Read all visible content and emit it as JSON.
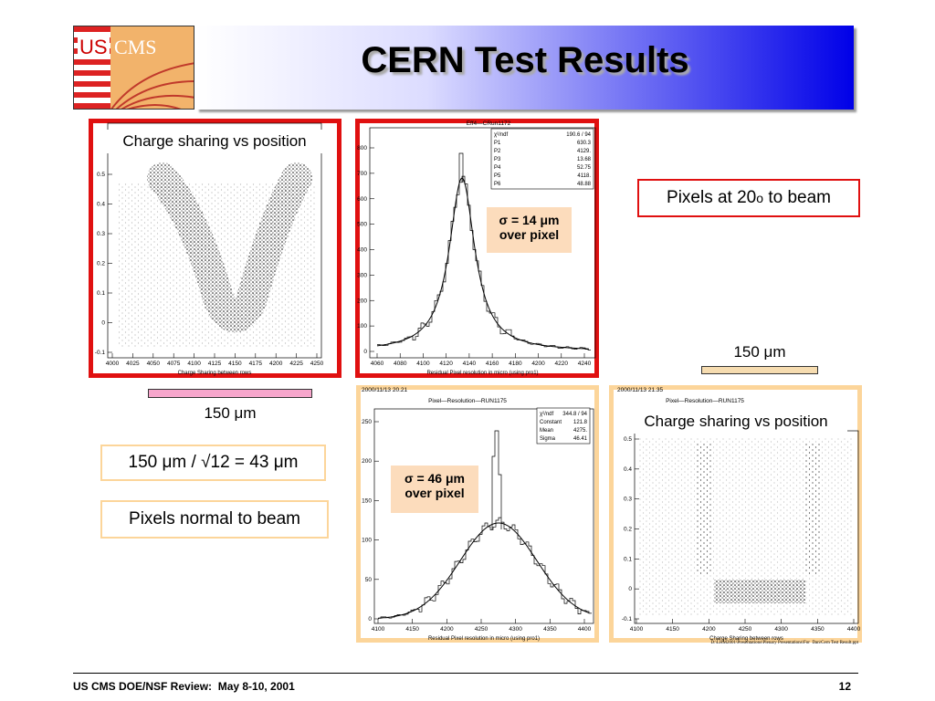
{
  "header": {
    "logo_us": "US",
    "logo_cms": "CMS",
    "title": "CERN Test Results"
  },
  "plots": [
    {
      "label": "Charge sharing vs position",
      "xlabel": "Charge Sharing between rows",
      "xticks": [
        4000,
        4025,
        4050,
        4075,
        4100,
        4125,
        4150,
        4175,
        4200,
        4225,
        4250
      ],
      "yticks": [
        -0.1,
        0,
        0.1,
        0.2,
        0.3,
        0.4,
        0.5
      ]
    },
    {
      "title": "Eff4—CRun1172",
      "xlabel": "Residual Pixel resolution in micro (using pro1)",
      "xticks": [
        4060,
        4080,
        4100,
        4120,
        4140,
        4160,
        4180,
        4200,
        4220,
        4240
      ],
      "yticks": [
        0,
        100,
        200,
        300,
        400,
        500,
        600,
        700,
        800
      ],
      "stats": [
        {
          "name": "χ²/ndf",
          "value": "190.6  /  94"
        },
        {
          "name": "P1",
          "value": "630.3"
        },
        {
          "name": "P2",
          "value": "4129."
        },
        {
          "name": "P3",
          "value": "13.68"
        },
        {
          "name": "P4",
          "value": "52.75"
        },
        {
          "name": "P5",
          "value": "4118."
        },
        {
          "name": "P6",
          "value": "48.88"
        }
      ]
    },
    {
      "date": "2000/11/13   20.21",
      "title": "Pixel—Resolution—RUN1175",
      "xlabel": "Residual Pixel resolution in micro (using pro1)",
      "xticks": [
        4100,
        4150,
        4200,
        4250,
        4300,
        4350,
        4400
      ],
      "yticks": [
        0,
        50,
        100,
        150,
        200,
        250
      ],
      "stats": [
        {
          "name": "χ²/ndf",
          "value": "344.8  /  94"
        },
        {
          "name": "Constant",
          "value": "121.8"
        },
        {
          "name": "Mean",
          "value": "4275."
        },
        {
          "name": "Sigma",
          "value": "46.41"
        }
      ]
    },
    {
      "date": "2000/11/13   21.35",
      "title": "Pixel—Resolution—RUN1175",
      "label": "Charge sharing vs position",
      "xlabel": "Charge Sharing between rows",
      "xticks": [
        4100,
        4150,
        4200,
        4250,
        4300,
        4350,
        4400
      ],
      "yticks": [
        -0.1,
        0,
        0.1,
        0.2,
        0.3,
        0.4,
        0.5
      ]
    }
  ],
  "annotations": {
    "sigma_top": [
      "σ = 14 μm",
      "over pixel"
    ],
    "sigma_bottom": [
      "σ = 46 μm",
      "over pixel"
    ],
    "pixels_tilted": [
      "Pixels at 20",
      "o",
      "to beam"
    ],
    "width_right": "150 μm",
    "width_left": "150 μm",
    "resolution": "150 μm / √12 = 43 μm",
    "pixels_normal": "Pixels normal to beam"
  },
  "footer": {
    "left": "US CMS DOE/NSF Review:  May 8-10, 2001",
    "page": "12",
    "path": "D:\\LHM2001\\Presentations\\Plenary Presentations\\For  Dan\\Cern Test Result.ppt"
  }
}
